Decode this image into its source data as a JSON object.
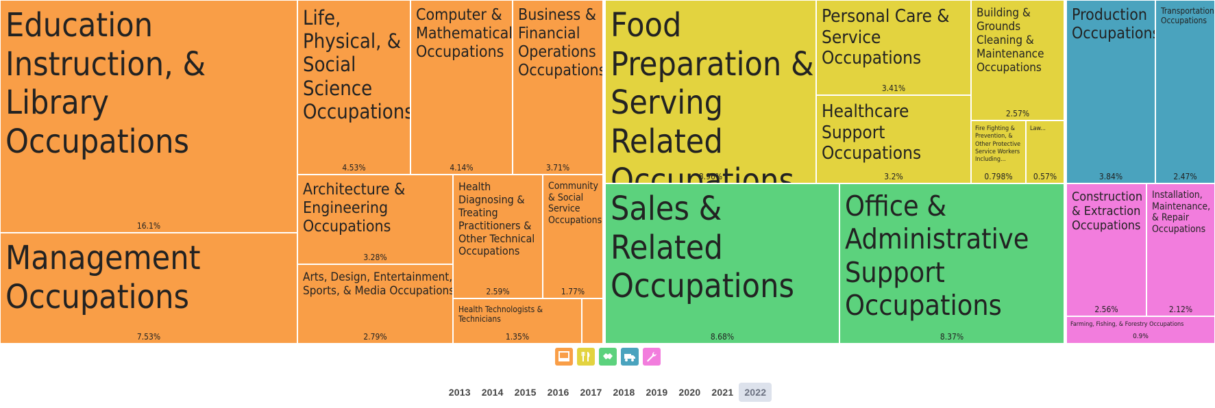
{
  "chart_data": {
    "type": "treemap",
    "groups": [
      {
        "color": "#f99e47",
        "icon": "computer-icon"
      },
      {
        "color": "#e3d33f",
        "icon": "fork-knife-icon"
      },
      {
        "color": "#5cd27d",
        "icon": "handshake-icon"
      },
      {
        "color": "#4aa3be",
        "icon": "truck-icon"
      },
      {
        "color": "#f27ddd",
        "icon": "wrench-icon"
      }
    ],
    "categories": [
      "Education Instruction, & Library Occupations",
      "Management Occupations",
      "Life, Physical, & Social Science Occupations",
      "Computer & Mathematical Occupations",
      "Business & Financial Operations Occupations",
      "Architecture & Engineering Occupations",
      "Health Diagnosing & Treating Practitioners & Other Technical Occupations",
      "Community & Social Service Occupations",
      "Arts, Design, Entertainment, Sports, & Media Occupations",
      "Health Technologists & Technicians",
      "",
      "Food Preparation & Serving Related Occupations",
      "Personal Care & Service Occupations",
      "Building & Grounds Cleaning & Maintenance Occupations",
      "Healthcare Support Occupations",
      "Fire Fighting & Prevention, & Other Protective Service Workers Including...",
      "Law...",
      "Sales & Related Occupations",
      "Office & Administrative Support Occupations",
      "Production Occupations",
      "Transportation Occupations",
      "Construction & Extraction Occupations",
      "Installation, Maintenance, & Repair Occupations",
      "Farming, Fishing, & Forestry Occupations"
    ],
    "value_labels": [
      "16.1%",
      "7.53%",
      "4.53%",
      "4.14%",
      "3.71%",
      "3.28%",
      "2.59%",
      "1.77%",
      "2.79%",
      "1.35%",
      "",
      "8.96%",
      "3.41%",
      "2.57%",
      "3.2%",
      "0.798%",
      "0.57%",
      "8.68%",
      "8.37%",
      "3.84%",
      "2.47%",
      "2.56%",
      "2.12%",
      "0.9%"
    ],
    "values": [
      16.1,
      7.53,
      4.53,
      4.14,
      3.71,
      3.28,
      2.59,
      1.77,
      2.79,
      1.35,
      0.3,
      8.96,
      3.41,
      2.57,
      3.2,
      0.798,
      0.57,
      8.68,
      8.37,
      3.84,
      2.47,
      2.56,
      2.12,
      0.9
    ]
  },
  "years": [
    "2013",
    "2014",
    "2015",
    "2016",
    "2017",
    "2018",
    "2019",
    "2020",
    "2021",
    "2022"
  ],
  "selected_year": "2022"
}
